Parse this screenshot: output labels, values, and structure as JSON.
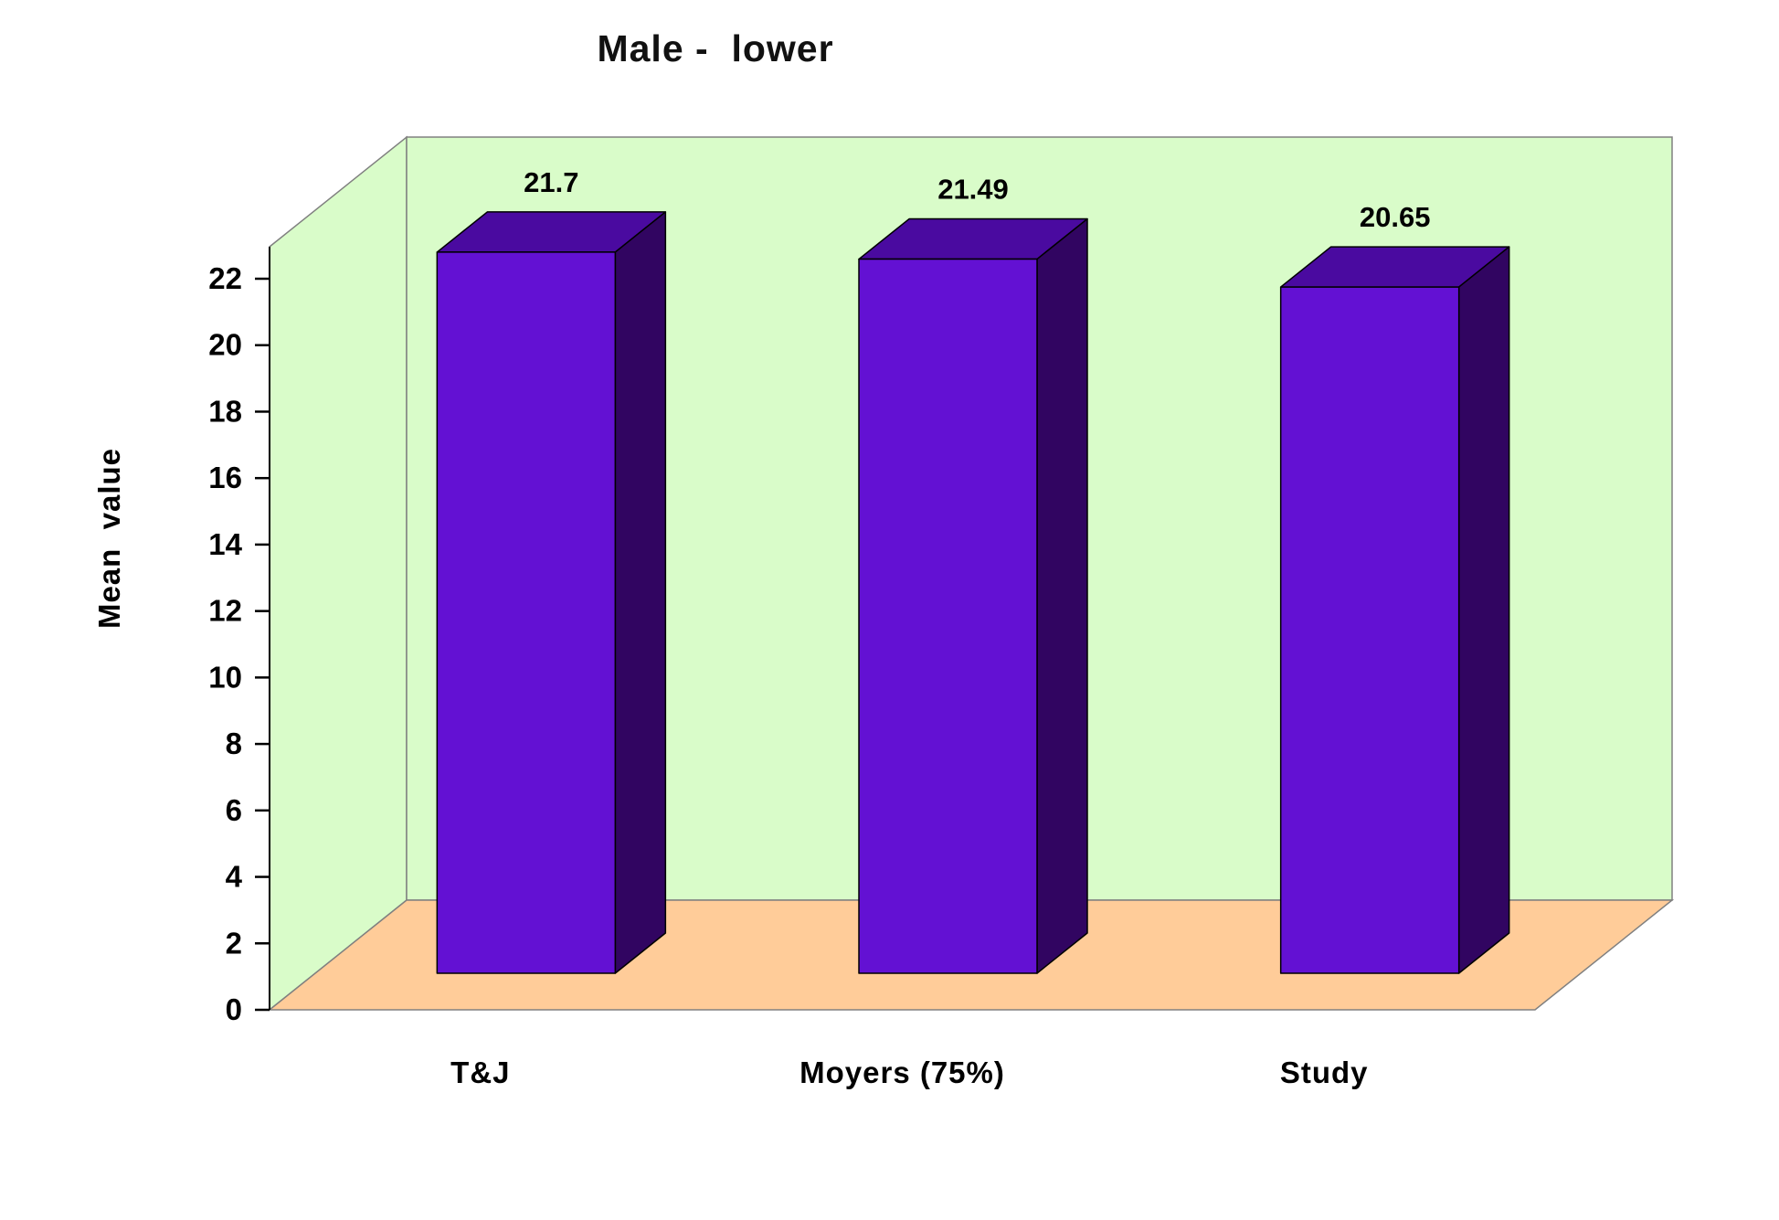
{
  "chart_data": {
    "type": "bar",
    "style": "3d-column",
    "title": "Male -  lower",
    "ylabel": "Mean  value",
    "xlabel": "",
    "categories": [
      "T&J",
      "Moyers (75%)",
      "Study"
    ],
    "values": [
      21.7,
      21.49,
      20.65
    ],
    "data_labels": [
      "21.7",
      "21.49",
      "20.65"
    ],
    "ylim": [
      0,
      22
    ],
    "ytick_step": 2,
    "yticks": [
      0,
      2,
      4,
      6,
      8,
      10,
      12,
      14,
      16,
      18,
      20,
      22
    ],
    "legend": "none",
    "gridlines": false,
    "colors": {
      "bar_front": "#6311d3",
      "bar_top": "#4a0aa0",
      "bar_side": "#310561",
      "bar_outline": "#000000",
      "wall": "#d9fcc9",
      "floor": "#ffcc99",
      "frame": "#808080",
      "text": "#000000",
      "background": "#ffffff"
    }
  }
}
